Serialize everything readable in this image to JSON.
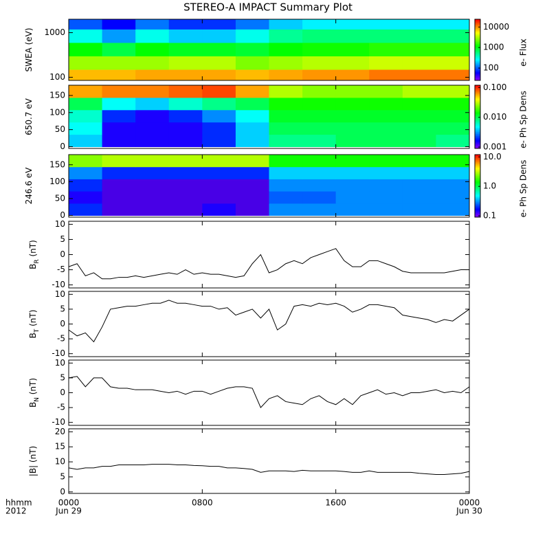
{
  "chart_data": [
    {
      "type": "heatmap",
      "title": "STEREO-A IMPACT Summary Plot",
      "ylabel": [
        "SWEA (eV)"
      ],
      "ylog": true,
      "ylim": [
        85,
        2000
      ],
      "yticks": [
        100,
        1000
      ],
      "xlim": [
        0,
        24
      ],
      "xticks": [
        0,
        8,
        16,
        24
      ],
      "xbins": [
        0,
        2,
        4,
        6,
        8,
        10,
        12,
        14,
        16,
        18,
        20,
        22,
        24
      ],
      "ybins": [
        85,
        150,
        300,
        600,
        1200,
        2000
      ],
      "values": [
        [
          8000,
          8000,
          9000,
          9000,
          9000,
          8000,
          9000,
          10000,
          10000,
          12000,
          12000,
          12000
        ],
        [
          3000,
          3000,
          3000,
          3500,
          3500,
          2500,
          3000,
          3500,
          3500,
          4000,
          4000,
          4000
        ],
        [
          1200,
          800,
          1200,
          1000,
          1000,
          900,
          1200,
          1300,
          1300,
          1500,
          1500,
          1500
        ],
        [
          300,
          150,
          300,
          200,
          200,
          300,
          500,
          600,
          600,
          600,
          600,
          600
        ],
        [
          100,
          60,
          120,
          80,
          80,
          120,
          200,
          250,
          250,
          250,
          250,
          250
        ]
      ],
      "colorbar_label": "e- Flux",
      "clim": [
        25,
        24000
      ],
      "cticks": [
        100,
        1000,
        10000
      ],
      "clog": true
    },
    {
      "type": "heatmap",
      "ylabel": [
        "650.7 eV"
      ],
      "ylim": [
        -5,
        180
      ],
      "yticks": [
        0,
        50,
        100,
        150
      ],
      "xlim": [
        0,
        24
      ],
      "xticks": [
        0,
        8,
        16,
        24
      ],
      "xbins": [
        0,
        2,
        4,
        6,
        8,
        10,
        12,
        14,
        16,
        18,
        20,
        22,
        24
      ],
      "ybins": [
        0,
        36,
        72,
        108,
        144,
        180
      ],
      "values": [
        [
          0.004,
          0.0015,
          0.0015,
          0.0015,
          0.002,
          0.004,
          0.008,
          0.008,
          0.01,
          0.01,
          0.01,
          0.008
        ],
        [
          0.005,
          0.0015,
          0.0015,
          0.0015,
          0.002,
          0.004,
          0.01,
          0.01,
          0.01,
          0.01,
          0.01,
          0.01
        ],
        [
          0.006,
          0.002,
          0.0015,
          0.002,
          0.003,
          0.005,
          0.012,
          0.012,
          0.012,
          0.012,
          0.012,
          0.012
        ],
        [
          0.01,
          0.005,
          0.004,
          0.006,
          0.008,
          0.01,
          0.015,
          0.015,
          0.015,
          0.015,
          0.015,
          0.015
        ],
        [
          0.06,
          0.07,
          0.07,
          0.08,
          0.09,
          0.06,
          0.03,
          0.025,
          0.025,
          0.025,
          0.03,
          0.03
        ]
      ],
      "colorbar_label": "e- Ph Sp Dens",
      "clim": [
        0.0009,
        0.12
      ],
      "cticks": [
        {
          "value": 0.001,
          "label": "0.001"
        },
        {
          "value": 0.01,
          "label": "0.010"
        },
        {
          "value": 0.1,
          "label": "0.100"
        }
      ],
      "clog": true
    },
    {
      "type": "heatmap",
      "ylabel": [
        "246.6 eV"
      ],
      "ylim": [
        -5,
        180
      ],
      "yticks": [
        0,
        50,
        100,
        150
      ],
      "xlim": [
        0,
        24
      ],
      "xticks": [
        0,
        8,
        16,
        24
      ],
      "xbins": [
        0,
        2,
        4,
        6,
        8,
        10,
        12,
        14,
        16,
        18,
        20,
        22,
        24
      ],
      "ybins": [
        0,
        36,
        72,
        108,
        144,
        180
      ],
      "values": [
        [
          0.2,
          0.12,
          0.12,
          0.12,
          0.15,
          0.12,
          0.3,
          0.3,
          0.3,
          0.3,
          0.3,
          0.3
        ],
        [
          0.15,
          0.12,
          0.12,
          0.12,
          0.12,
          0.12,
          0.25,
          0.25,
          0.3,
          0.3,
          0.3,
          0.3
        ],
        [
          0.2,
          0.12,
          0.12,
          0.12,
          0.12,
          0.12,
          0.3,
          0.3,
          0.3,
          0.3,
          0.3,
          0.3
        ],
        [
          0.3,
          0.2,
          0.2,
          0.2,
          0.2,
          0.2,
          0.4,
          0.4,
          0.4,
          0.4,
          0.4,
          0.4
        ],
        [
          2.5,
          3,
          3,
          3,
          3,
          3,
          1.5,
          1.5,
          1.5,
          1.5,
          1.5,
          1.5
        ]
      ],
      "colorbar_label": "e- Ph Sp Dens",
      "clim": [
        0.09,
        12
      ],
      "cticks": [
        0.1,
        {
          "value": 1,
          "label": "1.0"
        },
        {
          "value": 10,
          "label": "10.0"
        }
      ],
      "clog": true
    },
    {
      "type": "line",
      "ylabel": [
        "B",
        "R",
        " (nT)"
      ],
      "ylim": [
        -11,
        11
      ],
      "yticks": [
        -10,
        -5,
        0,
        5,
        10
      ],
      "xlim": [
        0,
        24
      ],
      "xticks": [
        0,
        8,
        16,
        24
      ],
      "color": "#000000",
      "x": [
        0,
        0.5,
        1,
        1.5,
        2,
        2.5,
        3,
        3.5,
        4,
        4.5,
        5,
        5.5,
        6,
        6.5,
        7,
        7.5,
        8,
        8.5,
        9,
        9.5,
        10,
        10.5,
        11,
        11.5,
        12,
        12.5,
        13,
        13.5,
        14,
        14.5,
        15,
        15.5,
        16,
        16.5,
        17,
        17.5,
        18,
        18.5,
        19,
        19.5,
        20,
        20.5,
        21,
        21.5,
        22,
        22.5,
        23,
        23.5,
        24
      ],
      "values": [
        -4,
        -3,
        -7,
        -6,
        -8,
        -8,
        -7.5,
        -7.5,
        -7,
        -7.5,
        -7,
        -6.5,
        -6,
        -6.5,
        -5,
        -6.5,
        -6,
        -6.5,
        -6.5,
        -7,
        -7.5,
        -7,
        -3,
        0,
        -6,
        -5,
        -3,
        -2,
        -3,
        -1,
        0,
        1,
        2,
        -2,
        -4,
        -4,
        -2,
        -2,
        -3,
        -4,
        -5.5,
        -6,
        -6,
        -6,
        -6,
        -6,
        -5.5,
        -5,
        -5
      ]
    },
    {
      "type": "line",
      "ylabel": [
        "B",
        "T",
        " (nT)"
      ],
      "ylim": [
        -11,
        11
      ],
      "yticks": [
        -10,
        -5,
        0,
        5,
        10
      ],
      "xlim": [
        0,
        24
      ],
      "xticks": [
        0,
        8,
        16,
        24
      ],
      "color": "#000000",
      "x": [
        0,
        0.5,
        1,
        1.5,
        2,
        2.5,
        3,
        3.5,
        4,
        4.5,
        5,
        5.5,
        6,
        6.5,
        7,
        7.5,
        8,
        8.5,
        9,
        9.5,
        10,
        10.5,
        11,
        11.5,
        12,
        12.5,
        13,
        13.5,
        14,
        14.5,
        15,
        15.5,
        16,
        16.5,
        17,
        17.5,
        18,
        18.5,
        19,
        19.5,
        20,
        20.5,
        21,
        21.5,
        22,
        22.5,
        23,
        23.5,
        24
      ],
      "values": [
        -2,
        -4,
        -3,
        -6,
        -1,
        5,
        5.5,
        6,
        6,
        6.5,
        7,
        7,
        8,
        7,
        7,
        6.5,
        6,
        6,
        5,
        5.5,
        3,
        4,
        5,
        2,
        5,
        -2,
        0,
        6,
        6.5,
        6,
        7,
        6.5,
        7,
        6,
        4,
        5,
        6.5,
        6.5,
        6,
        5.5,
        3,
        2.5,
        2,
        1.5,
        0.5,
        1.5,
        1,
        3,
        5
      ]
    },
    {
      "type": "line",
      "ylabel": [
        "B",
        "N",
        " (nT)"
      ],
      "ylim": [
        -11,
        11
      ],
      "yticks": [
        -10,
        -5,
        0,
        5,
        10
      ],
      "xlim": [
        0,
        24
      ],
      "xticks": [
        0,
        8,
        16,
        24
      ],
      "color": "#000000",
      "x": [
        0,
        0.5,
        1,
        1.5,
        2,
        2.5,
        3,
        3.5,
        4,
        4.5,
        5,
        5.5,
        6,
        6.5,
        7,
        7.5,
        8,
        8.5,
        9,
        9.5,
        10,
        10.5,
        11,
        11.5,
        12,
        12.5,
        13,
        13.5,
        14,
        14.5,
        15,
        15.5,
        16,
        16.5,
        17,
        17.5,
        18,
        18.5,
        19,
        19.5,
        20,
        20.5,
        21,
        21.5,
        22,
        22.5,
        23,
        23.5,
        24
      ],
      "values": [
        5,
        5.5,
        2,
        5,
        5,
        2,
        1.5,
        1.5,
        1,
        1,
        1,
        0.5,
        0,
        0.5,
        -0.5,
        0.5,
        0.5,
        -0.5,
        0.5,
        1.5,
        2,
        2,
        1.5,
        -5,
        -2,
        -1,
        -3,
        -3.5,
        -4,
        -2,
        -1,
        -3,
        -4,
        -2,
        -4,
        -1,
        0,
        1,
        -0.5,
        0,
        -1,
        0,
        0,
        0.5,
        1,
        0,
        0.5,
        0,
        2
      ]
    },
    {
      "type": "line",
      "ylabel": [
        "|B| (nT)"
      ],
      "ylim": [
        -0.5,
        21
      ],
      "yticks": [
        0,
        5,
        10,
        15,
        20
      ],
      "xlim": [
        0,
        24
      ],
      "color": "#000000",
      "xticks": [
        {
          "value": 0,
          "label": "0000"
        },
        {
          "value": 8,
          "label": "0800"
        },
        {
          "value": 16,
          "label": "1600"
        },
        {
          "value": 24,
          "label": "0000"
        }
      ],
      "date_labels": [
        {
          "value": 0,
          "label": "Jun 29"
        },
        {
          "value": 24,
          "label": "Jun 30"
        }
      ],
      "axis_caption": [
        "hhmm",
        "2012"
      ],
      "x": [
        0,
        0.5,
        1,
        1.5,
        2,
        2.5,
        3,
        3.5,
        4,
        4.5,
        5,
        5.5,
        6,
        6.5,
        7,
        7.5,
        8,
        8.5,
        9,
        9.5,
        10,
        10.5,
        11,
        11.5,
        12,
        12.5,
        13,
        13.5,
        14,
        14.5,
        15,
        15.5,
        16,
        16.5,
        17,
        17.5,
        18,
        18.5,
        19,
        19.5,
        20,
        20.5,
        21,
        21.5,
        22,
        22.5,
        23,
        23.5,
        24
      ],
      "values": [
        8,
        7.5,
        8,
        8,
        8.5,
        8.5,
        9,
        9,
        9,
        9,
        9.2,
        9.2,
        9.2,
        9,
        9,
        8.8,
        8.7,
        8.5,
        8.5,
        8,
        8,
        7.8,
        7.5,
        6.5,
        7,
        7,
        7,
        6.8,
        7.2,
        7,
        7,
        7,
        7,
        6.8,
        6.5,
        6.5,
        7,
        6.5,
        6.5,
        6.5,
        6.5,
        6.5,
        6.2,
        6,
        5.8,
        5.8,
        6,
        6.2,
        6.8
      ]
    }
  ]
}
